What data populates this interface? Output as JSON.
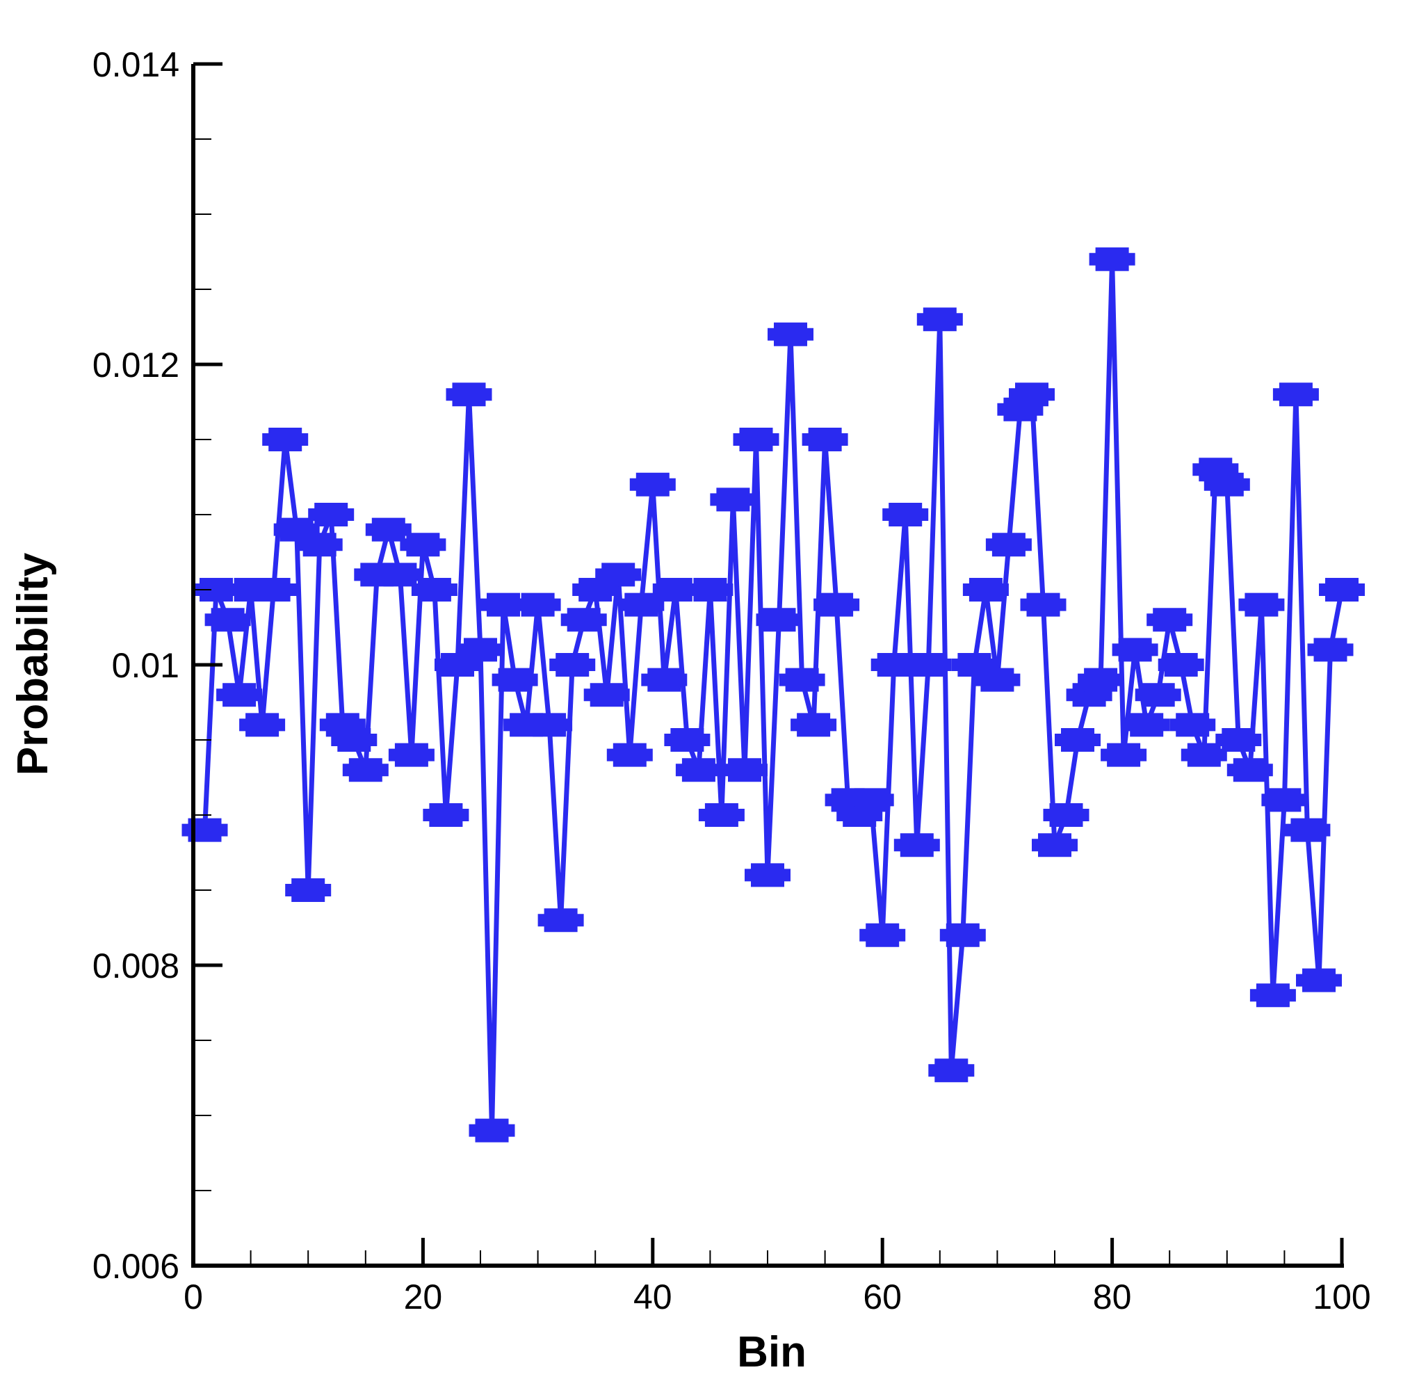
{
  "chart_data": {
    "type": "line",
    "xlabel": "Bin",
    "ylabel": "Probability",
    "xlim": [
      0,
      100
    ],
    "ylim": [
      0.006,
      0.014
    ],
    "x_ticks": [
      0,
      20,
      40,
      60,
      80,
      100
    ],
    "x_tick_labels": [
      "0",
      "20",
      "40",
      "60",
      "80",
      "100"
    ],
    "y_ticks": [
      0.006,
      0.008,
      0.01,
      0.012,
      0.014
    ],
    "y_tick_labels": [
      "0.006",
      "0.008",
      "0.01",
      "0.012",
      "0.014"
    ],
    "x_minor_step": 5,
    "y_minor_step": 0.0005,
    "grid": false,
    "colors": {
      "series": "#2a2af0",
      "axis": "#000000"
    },
    "marker": "plus",
    "series": [
      {
        "x": [
          1,
          2,
          3,
          4,
          5,
          6,
          7,
          8,
          9,
          10,
          11,
          12,
          13,
          14,
          15,
          16,
          17,
          18,
          19,
          20,
          21,
          22,
          23,
          24,
          25,
          26,
          27,
          28,
          29,
          30,
          31,
          32,
          33,
          34,
          35,
          36,
          37,
          38,
          39,
          40,
          41,
          42,
          43,
          44,
          45,
          46,
          47,
          48,
          49,
          50,
          51,
          52,
          53,
          54,
          55,
          56,
          57,
          58,
          59,
          60,
          61,
          62,
          63,
          64,
          65,
          66,
          67,
          68,
          69,
          70,
          71,
          72,
          73,
          74,
          75,
          76,
          77,
          78,
          79,
          80,
          81,
          82,
          83,
          84,
          85,
          86,
          87,
          88,
          89,
          90,
          91,
          92,
          93,
          94,
          95,
          96,
          97,
          98,
          99,
          100
        ],
        "values": [
          0.0089,
          0.0105,
          0.0103,
          0.0098,
          0.0105,
          0.0096,
          0.0105,
          0.0115,
          0.0109,
          0.0085,
          0.0108,
          0.011,
          0.0096,
          0.0095,
          0.0093,
          0.0106,
          0.0109,
          0.0106,
          0.0094,
          0.0108,
          0.0105,
          0.009,
          0.01,
          0.0118,
          0.0101,
          0.0069,
          0.0104,
          0.0099,
          0.0096,
          0.0104,
          0.0096,
          0.0083,
          0.01,
          0.0103,
          0.0105,
          0.0098,
          0.0106,
          0.0094,
          0.0104,
          0.0112,
          0.0099,
          0.0105,
          0.0095,
          0.0093,
          0.0105,
          0.009,
          0.0111,
          0.0093,
          0.0115,
          0.0086,
          0.0103,
          0.0122,
          0.0099,
          0.0096,
          0.0115,
          0.0104,
          0.0091,
          0.009,
          0.0091,
          0.0082,
          0.01,
          0.011,
          0.0088,
          0.01,
          0.0123,
          0.0073,
          0.0082,
          0.01,
          0.0105,
          0.0099,
          0.0108,
          0.0117,
          0.0118,
          0.0104,
          0.0088,
          0.009,
          0.0095,
          0.0098,
          0.0099,
          0.0127,
          0.0094,
          0.0101,
          0.0096,
          0.0098,
          0.0103,
          0.01,
          0.0096,
          0.0094,
          0.0113,
          0.0112,
          0.0095,
          0.0093,
          0.0104,
          0.0078,
          0.0091,
          0.0118,
          0.0089,
          0.0079,
          0.0101,
          0.0105
        ]
      }
    ]
  }
}
